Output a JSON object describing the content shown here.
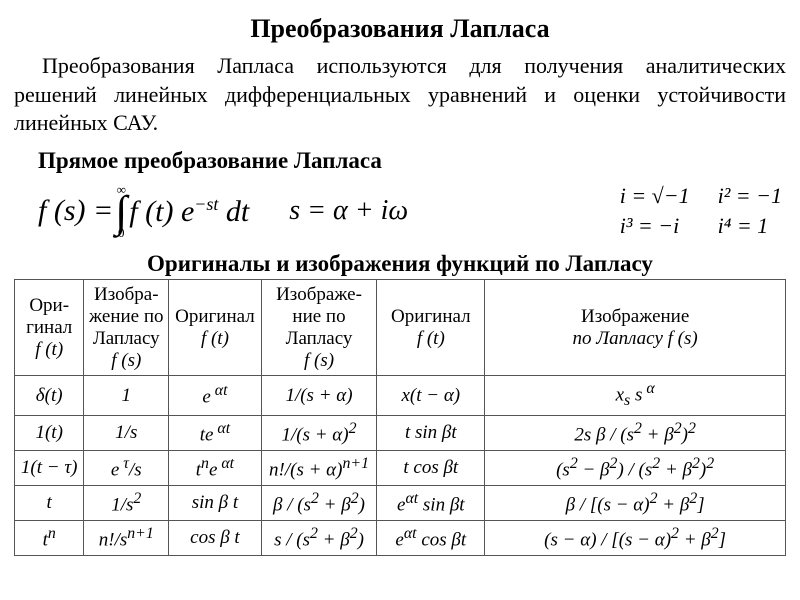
{
  "title": "Преобразования Лапласа",
  "paragraph": "Преобразования Лапласа используются для получения аналитических решений линейных дифференциальных уравнений и оценки устойчивости линейных САУ.",
  "subtitle_direct": "Прямое преобразование Лапласа",
  "formula": {
    "main_lhs": "f (s) =",
    "int_top": "∞",
    "int_bot": "0",
    "main_rhs": "f (t) e",
    "main_exp": "−st",
    "main_dt": " dt",
    "s_def": "s = α + iω",
    "i1": "i = √−1",
    "i2": "i² = −1",
    "i3": "i³ = −i",
    "i4": "i⁴ = 1"
  },
  "table_title": "Оригиналы и изображения функций по Лапласу",
  "table": {
    "headers": [
      "Ори-\nгинал\nf (t)",
      "Изобра-\nжение по\nЛапласу\nf (s)",
      "Оригинал\nf (t)",
      "Изображе-\nние по\nЛапласу\nf (s)",
      "Оригинал\nf (t)",
      "Изображение\nпо Лапласу  f (s)"
    ],
    "rows": [
      [
        "δ(t)",
        "1",
        "e<sup> αt</sup>",
        "1/(s + α)",
        "x(t − α)",
        "x<sub>s</sub> s<sup> α</sup>"
      ],
      [
        "1(t)",
        "1/s",
        "te<sup> αt</sup>",
        "1/(s + α)<sup>2</sup>",
        "t sin βt",
        "2s β / (s<sup>2</sup> + β<sup>2</sup>)<sup>2</sup>"
      ],
      [
        "1(t − τ)",
        "e<sup> τ</sup>/s",
        "t<sup>n</sup>e<sup> αt</sup>",
        "n!/(s + α)<sup>n+1</sup>",
        "t cos βt",
        "(s<sup>2</sup> − β<sup>2</sup>) / (s<sup>2</sup> + β<sup>2</sup>)<sup>2</sup>"
      ],
      [
        "t",
        "1/s<sup>2</sup>",
        "sin β t",
        "β / (s<sup>2</sup> + β<sup>2</sup>)",
        "e<sup>αt</sup> sin βt",
        "β / [(s − α)<sup>2</sup> + β<sup>2</sup>]"
      ],
      [
        "t<sup>n</sup>",
        "n!/s<sup>n+1</sup>",
        "cos β t",
        "s / (s<sup>2</sup> + β<sup>2</sup>)",
        "e<sup>αt</sup> cos βt",
        "(s − α) / [(s − α)<sup>2</sup> + β<sup>2</sup>]"
      ]
    ]
  },
  "style": {
    "background_color": "#ffffff",
    "text_color": "#000000",
    "font_family": "Times New Roman",
    "title_fontsize": 26,
    "body_fontsize": 22,
    "table_fontsize": 19,
    "border_color": "#555555"
  }
}
